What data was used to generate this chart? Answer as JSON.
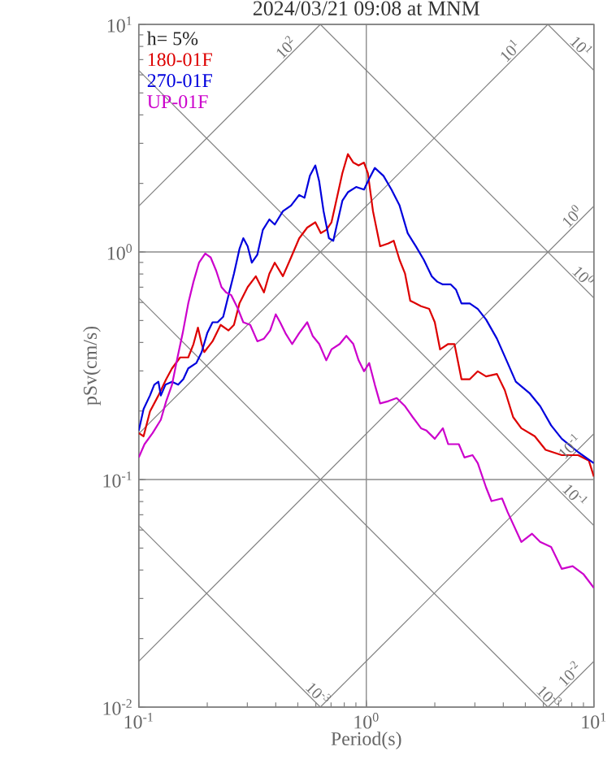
{
  "chart_data": {
    "type": "line",
    "title": "2024/03/21 09:08 at MNM",
    "xlabel": "Period(s)",
    "ylabel": "pSv(cm/s)",
    "log": "xy",
    "grid": true,
    "legend": "top left",
    "xlim": [
      0.1,
      10
    ],
    "ylim": [
      0.01,
      10
    ],
    "xticks": [
      {
        "value": 0.1,
        "label": "10$^{-1}$"
      },
      {
        "value": 1,
        "label": "10$^{0}$"
      },
      {
        "value": 10,
        "label": "10$^{1}$"
      }
    ],
    "yticks": [
      {
        "value": 0.01,
        "label": "10$^{-2}$"
      },
      {
        "value": 0.1,
        "label": "10$^{-1}$"
      },
      {
        "value": 1,
        "label": "10$^{0}$"
      },
      {
        "value": 10,
        "label": "10$^{1}$"
      }
    ],
    "annotations": [
      "h= 5%",
      {
        "text": "10$^{2}$",
        "x": 0.47,
        "y": 7.48
      },
      {
        "text": "10$^{1}$",
        "x": 4.54,
        "y": 7.23
      },
      {
        "text": "10$^{1}$",
        "x": 8.3,
        "y": 7.57
      },
      {
        "text": "10$^{0}$",
        "x": 8.5,
        "y": 1.353
      },
      {
        "text": "10$^{0}$",
        "x": 8.5,
        "y": 0.739
      },
      {
        "text": "10$^{-1}$",
        "x": 8.3,
        "y": 0.132
      },
      {
        "text": "10$^{-1}$",
        "x": 7.8,
        "y": 0.0805
      },
      {
        "text": "10$^{-3}$",
        "x": 0.58,
        "y": 0.01083
      },
      {
        "text": "10$^{-3}$",
        "x": 6.0,
        "y": 0.01047
      },
      {
        "text": "10$^{-2}$",
        "x": 8.3,
        "y": 0.01321
      }
    ],
    "series": [
      {
        "color": "#808080",
        "x": [
          6.28,
          10
        ],
        "values": [
          10,
          6.28
        ]
      },
      {
        "color": "#808080",
        "x": [
          0.628,
          10
        ],
        "values": [
          10,
          0.628
        ]
      },
      {
        "color": "#808080",
        "x": [
          0.1,
          10
        ],
        "values": [
          6.28,
          0.0628
        ]
      },
      {
        "color": "#808080",
        "x": [
          0.1,
          6.28
        ],
        "values": [
          0.628,
          0.01
        ]
      },
      {
        "color": "#808080",
        "x": [
          0.1,
          0.628
        ],
        "values": [
          0.0628,
          0.01
        ]
      },
      {
        "color": "#808080",
        "x": [
          0.1,
          0.628
        ],
        "values": [
          1.59,
          10
        ]
      },
      {
        "color": "#808080",
        "x": [
          0.1,
          6.28
        ],
        "values": [
          0.159,
          10
        ]
      },
      {
        "color": "#808080",
        "x": [
          0.1,
          10
        ],
        "values": [
          0.0159,
          1.59
        ]
      },
      {
        "color": "#808080",
        "x": [
          0.628,
          10
        ],
        "values": [
          0.01,
          0.159
        ]
      },
      {
        "color": "#808080",
        "x": [
          6.28,
          10
        ],
        "values": [
          0.01,
          0.0159
        ]
      },
      {
        "name": "180-01F",
        "color": "#dd0000",
        "x": [
          0.1,
          0.105,
          0.112,
          0.122,
          0.132,
          0.14,
          0.152,
          0.165,
          0.174,
          0.182,
          0.189,
          0.194,
          0.211,
          0.229,
          0.248,
          0.262,
          0.277,
          0.301,
          0.327,
          0.355,
          0.375,
          0.396,
          0.43,
          0.467,
          0.507,
          0.55,
          0.597,
          0.631,
          0.667,
          0.703,
          0.743,
          0.785,
          0.83,
          0.877,
          0.925,
          0.977,
          1.016,
          1.07,
          1.15,
          1.25,
          1.32,
          1.4,
          1.48,
          1.56,
          1.74,
          1.89,
          2.0,
          2.11,
          2.29,
          2.44,
          2.62,
          2.85,
          3.09,
          3.36,
          3.75,
          4.06,
          4.42,
          4.8,
          5.5,
          6.14,
          7.23,
          8.53,
          9.51,
          10
        ],
        "values": [
          0.16,
          0.155,
          0.199,
          0.234,
          0.276,
          0.308,
          0.344,
          0.344,
          0.394,
          0.465,
          0.394,
          0.363,
          0.405,
          0.478,
          0.452,
          0.478,
          0.594,
          0.701,
          0.782,
          0.664,
          0.803,
          0.897,
          0.782,
          0.946,
          1.148,
          1.28,
          1.35,
          1.21,
          1.25,
          1.35,
          1.73,
          2.22,
          2.69,
          2.47,
          2.4,
          2.47,
          2.22,
          1.51,
          1.06,
          1.09,
          1.12,
          0.923,
          0.803,
          0.611,
          0.578,
          0.562,
          0.491,
          0.373,
          0.394,
          0.394,
          0.276,
          0.276,
          0.299,
          0.284,
          0.291,
          0.247,
          0.188,
          0.168,
          0.155,
          0.135,
          0.128,
          0.128,
          0.121,
          0.103
        ]
      },
      {
        "name": "270-01F",
        "color": "#0000dd",
        "x": [
          0.1,
          0.105,
          0.112,
          0.117,
          0.122,
          0.125,
          0.131,
          0.14,
          0.149,
          0.157,
          0.165,
          0.179,
          0.189,
          0.2,
          0.211,
          0.222,
          0.235,
          0.248,
          0.262,
          0.277,
          0.288,
          0.301,
          0.314,
          0.332,
          0.351,
          0.375,
          0.396,
          0.43,
          0.467,
          0.507,
          0.535,
          0.565,
          0.597,
          0.621,
          0.649,
          0.685,
          0.716,
          0.743,
          0.785,
          0.83,
          0.902,
          0.977,
          1.03,
          1.09,
          1.19,
          1.29,
          1.4,
          1.52,
          1.65,
          1.79,
          1.94,
          2.05,
          2.17,
          2.35,
          2.48,
          2.62,
          2.85,
          3.09,
          3.36,
          3.75,
          4.18,
          4.54,
          5.21,
          5.81,
          6.49,
          7.23,
          8.53,
          10
        ],
        "values": [
          0.164,
          0.204,
          0.234,
          0.261,
          0.269,
          0.234,
          0.261,
          0.269,
          0.261,
          0.276,
          0.308,
          0.325,
          0.363,
          0.44,
          0.491,
          0.491,
          0.519,
          0.646,
          0.803,
          1.03,
          1.15,
          1.06,
          0.897,
          0.973,
          1.25,
          1.39,
          1.32,
          1.51,
          1.6,
          1.78,
          1.73,
          2.16,
          2.4,
          2.04,
          1.51,
          1.15,
          1.12,
          1.32,
          1.68,
          1.83,
          1.93,
          1.88,
          2.1,
          2.34,
          2.16,
          1.88,
          1.6,
          1.21,
          1.06,
          0.923,
          0.782,
          0.74,
          0.72,
          0.72,
          0.682,
          0.594,
          0.594,
          0.562,
          0.505,
          0.416,
          0.325,
          0.269,
          0.24,
          0.21,
          0.173,
          0.151,
          0.132,
          0.118
        ]
      },
      {
        "name": "UP-01F",
        "color": "#cc00cc",
        "x": [
          0.1,
          0.106,
          0.115,
          0.125,
          0.132,
          0.14,
          0.148,
          0.156,
          0.165,
          0.174,
          0.184,
          0.196,
          0.207,
          0.219,
          0.231,
          0.242,
          0.255,
          0.273,
          0.288,
          0.309,
          0.332,
          0.355,
          0.378,
          0.4,
          0.418,
          0.441,
          0.472,
          0.507,
          0.55,
          0.581,
          0.621,
          0.667,
          0.703,
          0.764,
          0.817,
          0.877,
          0.925,
          0.977,
          1.03,
          1.09,
          1.15,
          1.25,
          1.36,
          1.48,
          1.6,
          1.74,
          1.84,
          2.0,
          2.17,
          2.29,
          2.55,
          2.7,
          2.93,
          3.09,
          3.36,
          3.55,
          3.95,
          4.18,
          4.8,
          5.35,
          5.81,
          6.49,
          7.23,
          8.07,
          9.02,
          10
        ],
        "values": [
          0.125,
          0.143,
          0.16,
          0.183,
          0.221,
          0.261,
          0.344,
          0.44,
          0.594,
          0.74,
          0.897,
          0.984,
          0.946,
          0.826,
          0.701,
          0.664,
          0.646,
          0.562,
          0.491,
          0.478,
          0.405,
          0.416,
          0.452,
          0.532,
          0.491,
          0.44,
          0.394,
          0.44,
          0.491,
          0.428,
          0.394,
          0.334,
          0.373,
          0.394,
          0.428,
          0.394,
          0.334,
          0.299,
          0.325,
          0.261,
          0.216,
          0.221,
          0.228,
          0.21,
          0.188,
          0.168,
          0.164,
          0.151,
          0.168,
          0.143,
          0.143,
          0.125,
          0.128,
          0.118,
          0.0923,
          0.0804,
          0.0826,
          0.0719,
          0.0532,
          0.0578,
          0.0532,
          0.0505,
          0.0405,
          0.0416,
          0.0383,
          0.0334
        ]
      }
    ]
  }
}
